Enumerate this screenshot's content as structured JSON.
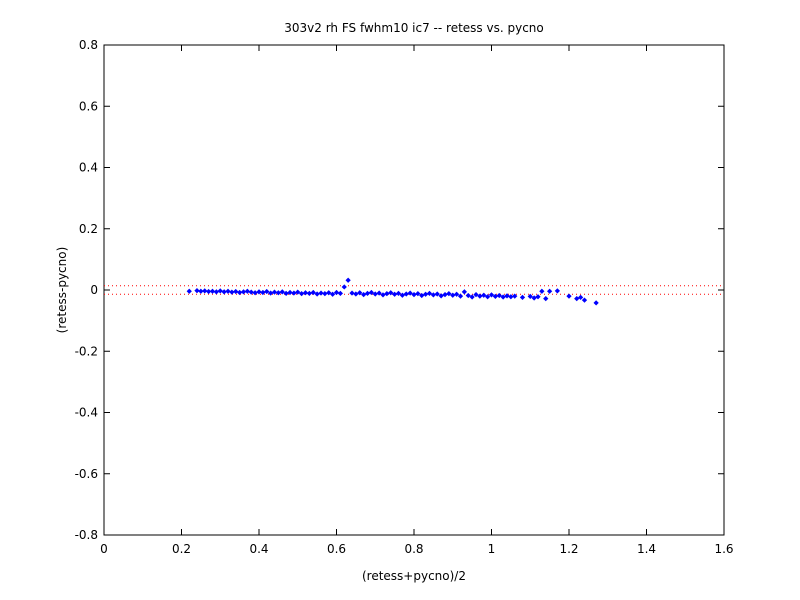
{
  "chart_data": {
    "type": "scatter",
    "title": "303v2 rh FS fwhm10 ic7 -- retess vs. pycno",
    "xlabel": "(retess+pycno)/2",
    "ylabel": "(retess-pycno)",
    "xlim": [
      0,
      1.6
    ],
    "ylim": [
      -0.8,
      0.8
    ],
    "xticks": [
      "0",
      "0.2",
      "0.4",
      "0.6",
      "0.8",
      "1",
      "1.2",
      "1.4",
      "1.6"
    ],
    "yticks": [
      "0.8",
      "0.6",
      "0.4",
      "0.2",
      "0",
      "-0.2",
      "-0.4",
      "-0.6",
      "-0.8"
    ],
    "grid": false,
    "marker_color": "#0000ff",
    "reference_line_color": "#ff0000",
    "reference_lines_y": [
      0.014,
      -0.014
    ],
    "points": [
      [
        0.22,
        -0.004
      ],
      [
        0.24,
        -0.002
      ],
      [
        0.25,
        -0.004
      ],
      [
        0.26,
        -0.003
      ],
      [
        0.27,
        -0.005
      ],
      [
        0.28,
        -0.004
      ],
      [
        0.29,
        -0.006
      ],
      [
        0.3,
        -0.003
      ],
      [
        0.31,
        -0.006
      ],
      [
        0.32,
        -0.004
      ],
      [
        0.33,
        -0.007
      ],
      [
        0.34,
        -0.005
      ],
      [
        0.35,
        -0.008
      ],
      [
        0.36,
        -0.006
      ],
      [
        0.37,
        -0.004
      ],
      [
        0.38,
        -0.007
      ],
      [
        0.39,
        -0.009
      ],
      [
        0.4,
        -0.006
      ],
      [
        0.41,
        -0.008
      ],
      [
        0.42,
        -0.005
      ],
      [
        0.43,
        -0.01
      ],
      [
        0.44,
        -0.007
      ],
      [
        0.45,
        -0.009
      ],
      [
        0.46,
        -0.006
      ],
      [
        0.47,
        -0.011
      ],
      [
        0.48,
        -0.008
      ],
      [
        0.49,
        -0.01
      ],
      [
        0.5,
        -0.007
      ],
      [
        0.51,
        -0.012
      ],
      [
        0.52,
        -0.009
      ],
      [
        0.53,
        -0.011
      ],
      [
        0.54,
        -0.008
      ],
      [
        0.55,
        -0.013
      ],
      [
        0.56,
        -0.01
      ],
      [
        0.57,
        -0.012
      ],
      [
        0.58,
        -0.009
      ],
      [
        0.59,
        -0.014
      ],
      [
        0.6,
        -0.008
      ],
      [
        0.61,
        -0.011
      ],
      [
        0.62,
        0.01
      ],
      [
        0.63,
        0.032
      ],
      [
        0.64,
        -0.01
      ],
      [
        0.65,
        -0.013
      ],
      [
        0.66,
        -0.009
      ],
      [
        0.67,
        -0.015
      ],
      [
        0.68,
        -0.011
      ],
      [
        0.69,
        -0.008
      ],
      [
        0.7,
        -0.013
      ],
      [
        0.71,
        -0.01
      ],
      [
        0.72,
        -0.016
      ],
      [
        0.73,
        -0.012
      ],
      [
        0.74,
        -0.009
      ],
      [
        0.75,
        -0.014
      ],
      [
        0.76,
        -0.011
      ],
      [
        0.77,
        -0.017
      ],
      [
        0.78,
        -0.013
      ],
      [
        0.79,
        -0.01
      ],
      [
        0.8,
        -0.015
      ],
      [
        0.81,
        -0.012
      ],
      [
        0.82,
        -0.018
      ],
      [
        0.83,
        -0.014
      ],
      [
        0.84,
        -0.011
      ],
      [
        0.85,
        -0.016
      ],
      [
        0.86,
        -0.013
      ],
      [
        0.87,
        -0.019
      ],
      [
        0.88,
        -0.015
      ],
      [
        0.89,
        -0.012
      ],
      [
        0.9,
        -0.017
      ],
      [
        0.91,
        -0.014
      ],
      [
        0.92,
        -0.02
      ],
      [
        0.93,
        -0.006
      ],
      [
        0.94,
        -0.018
      ],
      [
        0.95,
        -0.023
      ],
      [
        0.96,
        -0.015
      ],
      [
        0.97,
        -0.02
      ],
      [
        0.98,
        -0.017
      ],
      [
        0.99,
        -0.022
      ],
      [
        1.0,
        -0.016
      ],
      [
        1.01,
        -0.021
      ],
      [
        1.02,
        -0.018
      ],
      [
        1.03,
        -0.023
      ],
      [
        1.04,
        -0.019
      ],
      [
        1.05,
        -0.022
      ],
      [
        1.06,
        -0.02
      ],
      [
        1.08,
        -0.024
      ],
      [
        1.1,
        -0.021
      ],
      [
        1.11,
        -0.026
      ],
      [
        1.12,
        -0.022
      ],
      [
        1.13,
        -0.004
      ],
      [
        1.14,
        -0.028
      ],
      [
        1.15,
        -0.004
      ],
      [
        1.17,
        -0.003
      ],
      [
        1.2,
        -0.02
      ],
      [
        1.22,
        -0.028
      ],
      [
        1.23,
        -0.024
      ],
      [
        1.24,
        -0.033
      ],
      [
        1.27,
        -0.042
      ]
    ]
  }
}
